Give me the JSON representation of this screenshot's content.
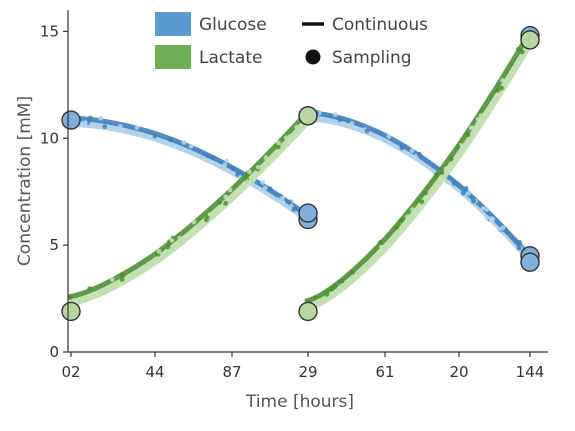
{
  "chart_data": {
    "type": "line",
    "xlabel": "Time [hours]",
    "ylabel": "Concentration [mM]",
    "ylim": [
      0,
      16
    ],
    "yticks": [
      "0",
      "5",
      "10",
      "15"
    ],
    "x_tick_labels": [
      "02",
      "44",
      "87",
      "29",
      "61",
      "20",
      "144"
    ],
    "legend": {
      "placement": "top",
      "entries": [
        {
          "label": "Glucose",
          "kind": "color-box",
          "color": "#5b9ad0"
        },
        {
          "label": "Lactate",
          "kind": "color-box",
          "color": "#6fae55"
        },
        {
          "label": "Continuous",
          "kind": "line",
          "color": "#111111"
        },
        {
          "label": "Sampling",
          "kind": "dot",
          "color": "#111111"
        }
      ]
    },
    "colors": {
      "glucose_dark": "#3f7fbd",
      "glucose_light": "#b3d3ec",
      "lactate_dark": "#4f8f35",
      "lactate_light": "#c3e0b1"
    },
    "x_positions": [
      0,
      1,
      2,
      3,
      4,
      5,
      6
    ],
    "segments": [
      {
        "x_start": 0,
        "x_end": 3,
        "glucose": {
          "start": 10.85,
          "end": 6.3
        },
        "lactate": {
          "start": 2.5,
          "end": 11.1
        }
      },
      {
        "x_start": 3,
        "x_end": 6,
        "glucose": {
          "start": 11.1,
          "end": 4.4
        },
        "lactate": {
          "start": 2.3,
          "end": 14.8
        }
      }
    ],
    "sampling_points": [
      {
        "series": "Glucose",
        "x": 0,
        "y": 10.85
      },
      {
        "series": "Glucose",
        "x": 3,
        "y": 6.2
      },
      {
        "series": "Glucose",
        "x": 3,
        "y": 6.5
      },
      {
        "series": "Glucose",
        "x": 3,
        "y": 11.05
      },
      {
        "series": "Glucose",
        "x": 6,
        "y": 4.5
      },
      {
        "series": "Glucose",
        "x": 6,
        "y": 4.2
      },
      {
        "series": "Glucose",
        "x": 6,
        "y": 14.8
      },
      {
        "series": "Lactate",
        "x": 0,
        "y": 1.9
      },
      {
        "series": "Lactate",
        "x": 3,
        "y": 11.05
      },
      {
        "series": "Lactate",
        "x": 3,
        "y": 1.9
      },
      {
        "series": "Lactate",
        "x": 6,
        "y": 14.6
      }
    ]
  }
}
